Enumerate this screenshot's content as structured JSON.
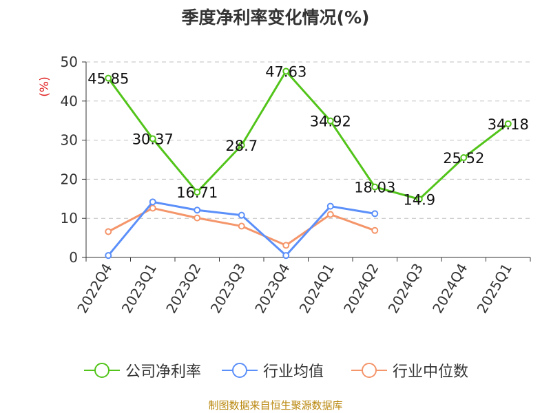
{
  "chart_data": {
    "type": "line",
    "title": "季度净利率变化情况(%)",
    "ylabel": "(%)",
    "xlabel": "",
    "ylim": [
      0,
      50
    ],
    "yticks": [
      0,
      10,
      20,
      30,
      40,
      50
    ],
    "grid": true,
    "legend_position": "bottom",
    "categories": [
      "2022Q4",
      "2023Q1",
      "2023Q2",
      "2023Q3",
      "2023Q4",
      "2024Q1",
      "2024Q2",
      "2024Q3",
      "2024Q4",
      "2025Q1"
    ],
    "series": [
      {
        "name": "公司净利率",
        "color": "#52c41a",
        "values": [
          45.85,
          30.37,
          16.71,
          28.7,
          47.63,
          34.92,
          18.03,
          14.9,
          25.52,
          34.18
        ],
        "labels": [
          "45.85",
          "30.37",
          "16.71",
          "28.7",
          "47.63",
          "34.92",
          "18.03",
          "14.9",
          "25.52",
          "34.18"
        ]
      },
      {
        "name": "行业均值",
        "color": "#5b8ff9",
        "values": [
          0.5,
          14.2,
          12.1,
          10.8,
          0.5,
          13.1,
          11.2,
          null,
          null,
          null
        ]
      },
      {
        "name": "行业中位数",
        "color": "#f4956a",
        "values": [
          6.6,
          12.6,
          10.1,
          8.0,
          3.1,
          11.0,
          6.9,
          null,
          null,
          null
        ]
      }
    ]
  },
  "source": "制图数据来自恒生聚源数据库"
}
